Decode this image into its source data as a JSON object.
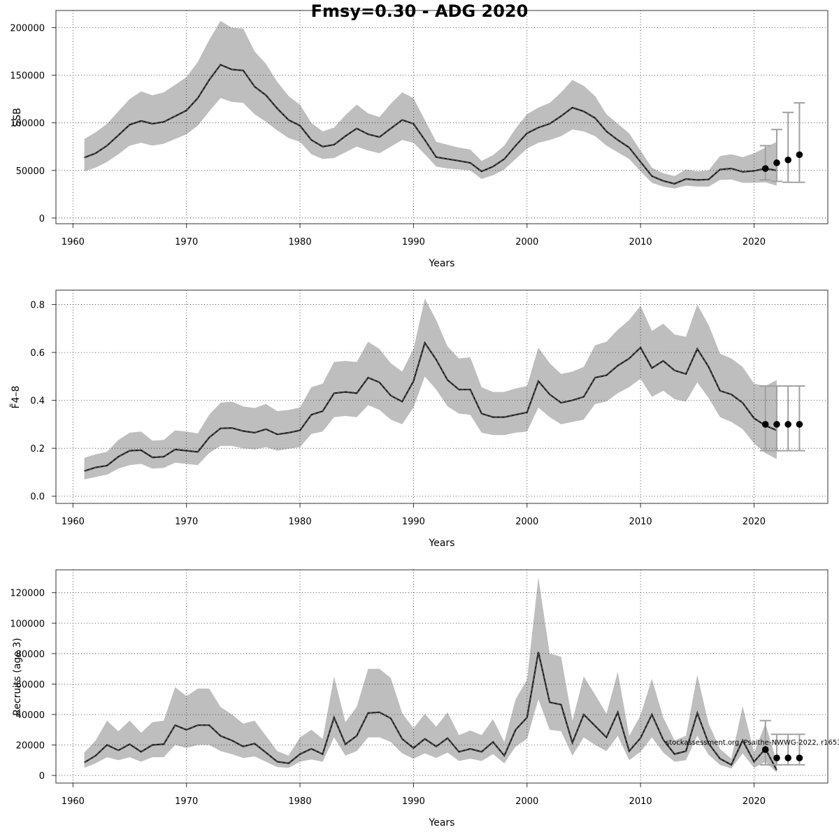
{
  "title": "Fmsy=0.30 - ADG 2020",
  "watermark": "stockassessment.org, Psaithe-NWWG-2022, r1653",
  "colors": {
    "band": "#bebebe",
    "line": "#1a1a1a",
    "forecast_bar": "#a0a0a0",
    "point": "#000000",
    "grid": "#333333"
  },
  "chart_data": [
    {
      "type": "line",
      "xlabel": "Years",
      "ylabel": "SSB",
      "xlim": [
        1958.5,
        2026.5
      ],
      "ylim": [
        -6000,
        218000
      ],
      "xticks": [
        1960,
        1970,
        1980,
        1990,
        2000,
        2010,
        2020
      ],
      "yticks": [
        0,
        50000,
        100000,
        150000,
        200000
      ],
      "x": [
        1961,
        1962,
        1963,
        1964,
        1965,
        1966,
        1967,
        1968,
        1969,
        1970,
        1971,
        1972,
        1973,
        1974,
        1975,
        1976,
        1977,
        1978,
        1979,
        1980,
        1981,
        1982,
        1983,
        1984,
        1985,
        1986,
        1987,
        1988,
        1989,
        1990,
        1991,
        1992,
        1993,
        1994,
        1995,
        1996,
        1997,
        1998,
        1999,
        2000,
        2001,
        2002,
        2003,
        2004,
        2005,
        2006,
        2007,
        2008,
        2009,
        2010,
        2011,
        2012,
        2013,
        2014,
        2015,
        2016,
        2017,
        2018,
        2019,
        2020,
        2021,
        2022
      ],
      "estimate": [
        63500,
        68000,
        76000,
        87000,
        98000,
        102000,
        99000,
        101000,
        107000,
        113000,
        126000,
        145000,
        161000,
        156000,
        155000,
        138000,
        129000,
        115000,
        103000,
        97000,
        82000,
        75000,
        77000,
        86000,
        94000,
        88000,
        85000,
        94000,
        103000,
        99000,
        82000,
        64000,
        62000,
        60000,
        58000,
        49000,
        54000,
        62000,
        76000,
        89000,
        95000,
        99000,
        107000,
        116000,
        112000,
        105000,
        91000,
        82000,
        74000,
        59000,
        44000,
        39000,
        36000,
        41000,
        40000,
        40500,
        51000,
        52000,
        48500,
        49500,
        52000,
        50000
      ],
      "lower": [
        49000,
        53000,
        59000,
        67000,
        76000,
        79000,
        76000,
        78000,
        83000,
        88000,
        97000,
        112000,
        126000,
        122000,
        121000,
        109000,
        101000,
        92000,
        84000,
        80000,
        67000,
        62000,
        63000,
        69000,
        75000,
        71000,
        68000,
        75000,
        82000,
        79000,
        67000,
        54000,
        52000,
        51000,
        50000,
        41000,
        45000,
        51000,
        62000,
        73000,
        79000,
        82000,
        86000,
        93000,
        91000,
        86000,
        76000,
        69000,
        62000,
        49000,
        37000,
        33000,
        31000,
        34000,
        33000,
        33000,
        40000,
        40500,
        37000,
        37000,
        37500,
        34000
      ],
      "upper": [
        83000,
        90000,
        99000,
        112000,
        125000,
        133000,
        129000,
        132000,
        140000,
        148000,
        164000,
        187000,
        207000,
        200000,
        199000,
        175000,
        162000,
        143000,
        128000,
        119000,
        100000,
        91000,
        95000,
        108000,
        119000,
        110000,
        106000,
        120000,
        132000,
        126000,
        103000,
        80000,
        77000,
        74000,
        72000,
        60000,
        66000,
        76000,
        94000,
        109000,
        116000,
        121000,
        132000,
        145000,
        139000,
        128000,
        109000,
        99000,
        89000,
        71000,
        53000,
        47000,
        44000,
        51000,
        49000,
        50000,
        65000,
        67000,
        64000,
        68000,
        74000,
        80000
      ],
      "forecast": {
        "x": [
          2021,
          2022,
          2023,
          2024
        ],
        "value": [
          52000,
          58000,
          61000,
          66500
        ],
        "lower": [
          40000,
          38500,
          37500,
          37500
        ],
        "upper": [
          76000,
          93000,
          111000,
          121000
        ]
      }
    },
    {
      "type": "line",
      "xlabel": "Years",
      "ylabel": "F̄4–8",
      "xlim": [
        1958.5,
        2026.5
      ],
      "ylim": [
        -0.03,
        0.86
      ],
      "xticks": [
        1960,
        1970,
        1980,
        1990,
        2000,
        2010,
        2020
      ],
      "yticks": [
        0.0,
        0.2,
        0.4,
        0.6,
        0.8
      ],
      "ytick_labels": [
        "0.0",
        "0.2",
        "0.4",
        "0.6",
        "0.8"
      ],
      "x": [
        1961,
        1962,
        1963,
        1964,
        1965,
        1966,
        1967,
        1968,
        1969,
        1970,
        1971,
        1972,
        1973,
        1974,
        1975,
        1976,
        1977,
        1978,
        1979,
        1980,
        1981,
        1982,
        1983,
        1984,
        1985,
        1986,
        1987,
        1988,
        1989,
        1990,
        1991,
        1992,
        1993,
        1994,
        1995,
        1996,
        1997,
        1998,
        1999,
        2000,
        2001,
        2002,
        2003,
        2004,
        2005,
        2006,
        2007,
        2008,
        2009,
        2010,
        2011,
        2012,
        2013,
        2014,
        2015,
        2016,
        2017,
        2018,
        2019,
        2020,
        2021,
        2022
      ],
      "estimate": [
        0.105,
        0.12,
        0.128,
        0.165,
        0.19,
        0.192,
        0.162,
        0.165,
        0.195,
        0.19,
        0.185,
        0.245,
        0.283,
        0.285,
        0.272,
        0.265,
        0.28,
        0.258,
        0.265,
        0.275,
        0.34,
        0.355,
        0.43,
        0.435,
        0.43,
        0.495,
        0.475,
        0.42,
        0.395,
        0.48,
        0.64,
        0.57,
        0.485,
        0.445,
        0.445,
        0.345,
        0.33,
        0.33,
        0.34,
        0.35,
        0.48,
        0.425,
        0.39,
        0.4,
        0.415,
        0.495,
        0.505,
        0.545,
        0.575,
        0.62,
        0.535,
        0.565,
        0.525,
        0.51,
        0.615,
        0.54,
        0.44,
        0.425,
        0.39,
        0.325,
        0.295,
        0.275
      ],
      "lower": [
        0.07,
        0.08,
        0.09,
        0.115,
        0.13,
        0.135,
        0.115,
        0.118,
        0.14,
        0.135,
        0.13,
        0.18,
        0.21,
        0.21,
        0.2,
        0.195,
        0.205,
        0.19,
        0.198,
        0.205,
        0.26,
        0.27,
        0.33,
        0.335,
        0.33,
        0.38,
        0.36,
        0.32,
        0.3,
        0.37,
        0.5,
        0.445,
        0.375,
        0.345,
        0.34,
        0.265,
        0.255,
        0.255,
        0.265,
        0.27,
        0.37,
        0.33,
        0.3,
        0.31,
        0.32,
        0.385,
        0.395,
        0.43,
        0.455,
        0.49,
        0.415,
        0.44,
        0.405,
        0.395,
        0.475,
        0.41,
        0.33,
        0.31,
        0.28,
        0.22,
        0.18,
        0.155
      ],
      "upper": [
        0.16,
        0.175,
        0.185,
        0.235,
        0.265,
        0.27,
        0.232,
        0.235,
        0.275,
        0.27,
        0.262,
        0.34,
        0.39,
        0.395,
        0.375,
        0.368,
        0.385,
        0.355,
        0.36,
        0.37,
        0.455,
        0.47,
        0.56,
        0.565,
        0.56,
        0.645,
        0.615,
        0.555,
        0.52,
        0.615,
        0.825,
        0.735,
        0.625,
        0.575,
        0.58,
        0.455,
        0.435,
        0.435,
        0.45,
        0.46,
        0.62,
        0.555,
        0.51,
        0.52,
        0.54,
        0.63,
        0.645,
        0.695,
        0.735,
        0.795,
        0.69,
        0.72,
        0.675,
        0.665,
        0.8,
        0.715,
        0.595,
        0.575,
        0.54,
        0.47,
        0.46,
        0.485
      ],
      "forecast": {
        "x": [
          2021,
          2022,
          2023,
          2024
        ],
        "value": [
          0.3,
          0.3,
          0.3,
          0.3
        ],
        "lower": [
          0.19,
          0.19,
          0.19,
          0.19
        ],
        "upper": [
          0.46,
          0.46,
          0.46,
          0.46
        ]
      }
    },
    {
      "type": "line",
      "xlabel": "Years",
      "ylabel": "Recruits (age 3)",
      "xlim": [
        1958.5,
        2026.5
      ],
      "ylim": [
        -5000,
        135000
      ],
      "xticks": [
        1960,
        1970,
        1980,
        1990,
        2000,
        2010,
        2020
      ],
      "yticks": [
        0,
        20000,
        40000,
        60000,
        80000,
        100000,
        120000
      ],
      "x": [
        1961,
        1962,
        1963,
        1964,
        1965,
        1966,
        1967,
        1968,
        1969,
        1970,
        1971,
        1972,
        1973,
        1974,
        1975,
        1976,
        1977,
        1978,
        1979,
        1980,
        1981,
        1982,
        1983,
        1984,
        1985,
        1986,
        1987,
        1988,
        1989,
        1990,
        1991,
        1992,
        1993,
        1994,
        1995,
        1996,
        1997,
        1998,
        1999,
        2000,
        2001,
        2002,
        2003,
        2004,
        2005,
        2006,
        2007,
        2008,
        2009,
        2010,
        2011,
        2012,
        2013,
        2014,
        2015,
        2016,
        2017,
        2018,
        2019,
        2020,
        2021,
        2022
      ],
      "estimate": [
        8500,
        13000,
        20000,
        16500,
        20500,
        15500,
        20000,
        20500,
        33000,
        30000,
        33000,
        33000,
        26000,
        23000,
        19000,
        21000,
        15000,
        9000,
        8000,
        14000,
        17500,
        14000,
        38000,
        20500,
        26000,
        41000,
        41500,
        37500,
        24000,
        18000,
        24000,
        19000,
        24500,
        15500,
        17500,
        15500,
        22000,
        13000,
        30000,
        38000,
        81000,
        48000,
        46500,
        21500,
        40000,
        32500,
        25000,
        41500,
        16000,
        24500,
        40000,
        23500,
        14000,
        16000,
        41000,
        21000,
        11000,
        7000,
        23000,
        9000,
        17500,
        3500
      ],
      "lower": [
        5000,
        8000,
        12000,
        10000,
        12000,
        9000,
        12000,
        12000,
        20000,
        18000,
        20000,
        20000,
        16000,
        14000,
        11500,
        12500,
        9000,
        5500,
        5000,
        9000,
        10500,
        9000,
        25000,
        13000,
        16000,
        25000,
        25000,
        22000,
        14500,
        11000,
        14500,
        11500,
        15000,
        9500,
        11000,
        9500,
        14000,
        8000,
        19000,
        24000,
        50000,
        30000,
        29000,
        13000,
        25000,
        20000,
        16000,
        26000,
        10000,
        15500,
        25000,
        15000,
        9000,
        10000,
        26000,
        13500,
        7000,
        4500,
        14500,
        5000,
        9000,
        2000
      ],
      "upper": [
        15000,
        23000,
        36000,
        29000,
        36000,
        28000,
        35000,
        36000,
        58000,
        52000,
        57000,
        57000,
        45000,
        40000,
        34000,
        36000,
        26000,
        16000,
        13000,
        25000,
        30000,
        24000,
        65000,
        35000,
        45000,
        70000,
        70000,
        64000,
        41000,
        31000,
        40500,
        32000,
        41500,
        26500,
        29500,
        26500,
        37000,
        22000,
        50000,
        63000,
        130000,
        80000,
        78000,
        36000,
        65000,
        53000,
        40500,
        68000,
        26000,
        39500,
        63500,
        38000,
        23000,
        26000,
        66000,
        34000,
        17500,
        11000,
        45500,
        15000,
        34000,
        9000
      ],
      "forecast": {
        "x": [
          2021,
          2022,
          2023,
          2024
        ],
        "value": [
          17000,
          11500,
          11500,
          11500
        ],
        "lower": [
          7000,
          7000,
          7000,
          7000
        ],
        "upper": [
          36000,
          27000,
          27000,
          27000
        ]
      }
    }
  ]
}
